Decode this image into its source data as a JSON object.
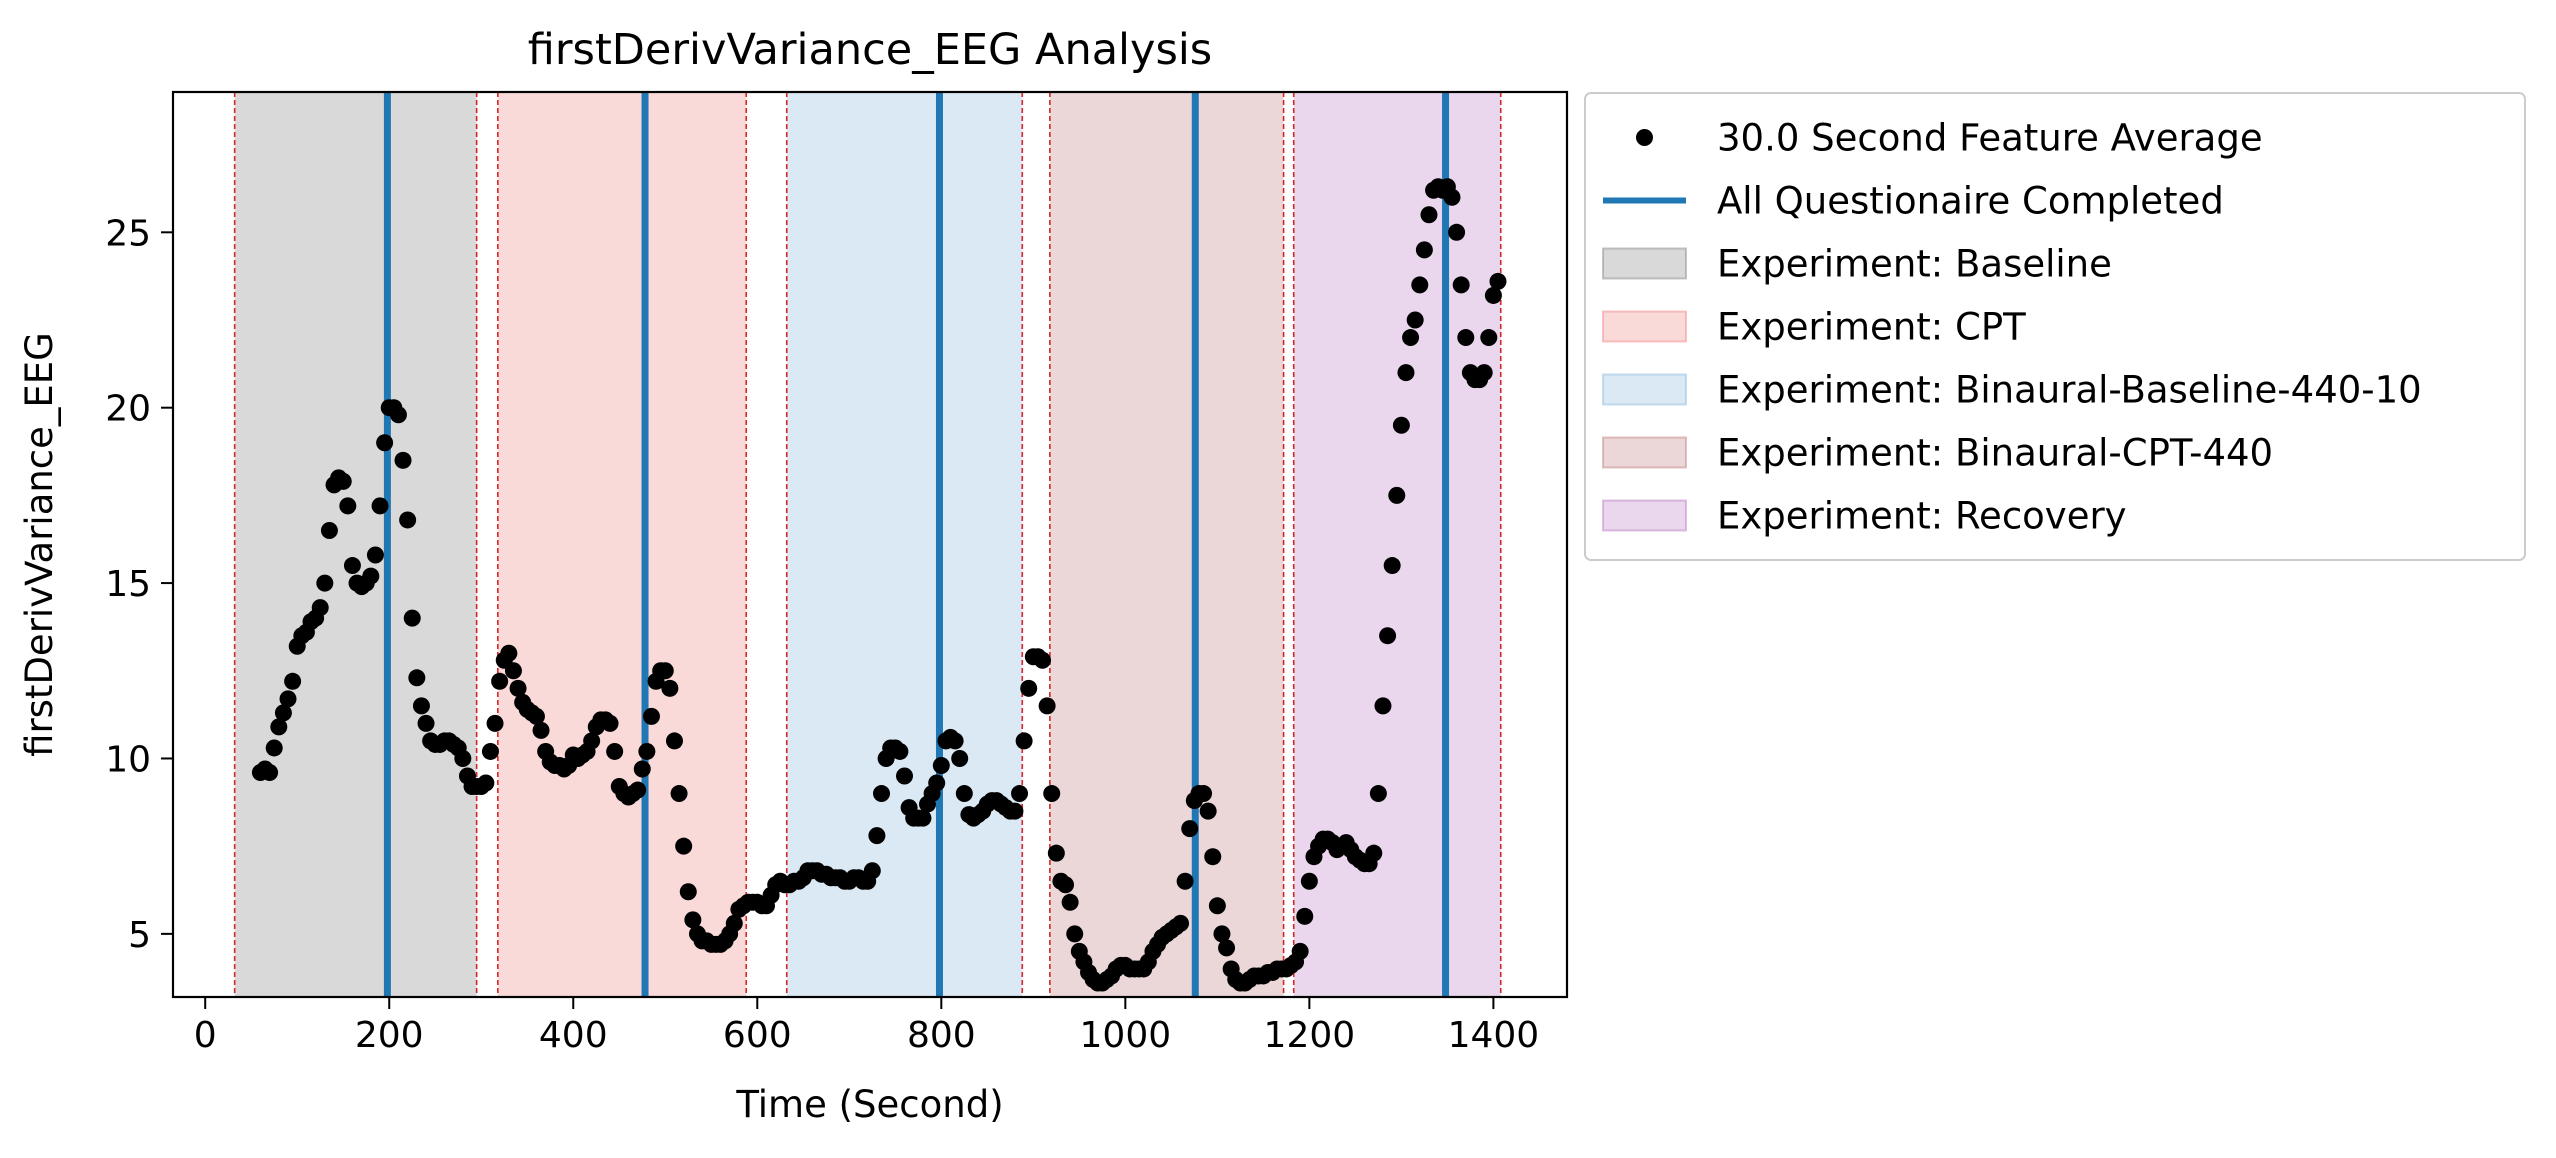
{
  "chart_data": {
    "type": "scatter",
    "title": "firstDerivVariance_EEG Analysis",
    "xlabel": "Time (Second)",
    "ylabel": "firstDerivVariance_EEG",
    "xlim": [
      -35,
      1480
    ],
    "ylim": [
      3.2,
      29
    ],
    "xticks": [
      0,
      200,
      400,
      600,
      800,
      1000,
      1200,
      1400
    ],
    "yticks": [
      5,
      10,
      15,
      20,
      25
    ],
    "grid": false,
    "legend_position": "outside-right-top",
    "colors": {
      "points": "#000000",
      "questionnaire_line": "#1f77b4",
      "boundary_line": "#d62728",
      "Baseline": "#808080",
      "CPT": "#f08080",
      "Binaural-Baseline-440-10": "#87b5dc",
      "Binaural-CPT-440": "#bc7a7a",
      "Recovery": "#b978c2"
    },
    "experiment_phases": [
      {
        "name": "Baseline",
        "start": 32,
        "end": 295
      },
      {
        "name": "CPT",
        "start": 318,
        "end": 588
      },
      {
        "name": "Binaural-Baseline-440-10",
        "start": 632,
        "end": 888
      },
      {
        "name": "Binaural-CPT-440",
        "start": 918,
        "end": 1172
      },
      {
        "name": "Recovery",
        "start": 1183,
        "end": 1408
      }
    ],
    "phase_boundaries": [
      32,
      295,
      318,
      588,
      632,
      888,
      918,
      1172,
      1183,
      1408
    ],
    "questionnaire_completed": [
      198,
      478,
      798,
      1076,
      1348
    ],
    "series": [
      {
        "name": "30.0 Second Feature Average",
        "points": [
          [
            60,
            9.6
          ],
          [
            65,
            9.7
          ],
          [
            70,
            9.6
          ],
          [
            75,
            10.3
          ],
          [
            80,
            10.9
          ],
          [
            85,
            11.3
          ],
          [
            90,
            11.7
          ],
          [
            95,
            12.2
          ],
          [
            100,
            13.2
          ],
          [
            105,
            13.5
          ],
          [
            110,
            13.6
          ],
          [
            115,
            13.9
          ],
          [
            120,
            14.0
          ],
          [
            125,
            14.3
          ],
          [
            130,
            15.0
          ],
          [
            135,
            16.5
          ],
          [
            140,
            17.8
          ],
          [
            145,
            18.0
          ],
          [
            150,
            17.9
          ],
          [
            155,
            17.2
          ],
          [
            160,
            15.5
          ],
          [
            165,
            15.0
          ],
          [
            170,
            14.9
          ],
          [
            175,
            15.0
          ],
          [
            180,
            15.2
          ],
          [
            185,
            15.8
          ],
          [
            190,
            17.2
          ],
          [
            195,
            19.0
          ],
          [
            200,
            20.0
          ],
          [
            205,
            20.0
          ],
          [
            210,
            19.8
          ],
          [
            215,
            18.5
          ],
          [
            220,
            16.8
          ],
          [
            225,
            14.0
          ],
          [
            230,
            12.3
          ],
          [
            235,
            11.5
          ],
          [
            240,
            11.0
          ],
          [
            245,
            10.5
          ],
          [
            250,
            10.4
          ],
          [
            255,
            10.4
          ],
          [
            260,
            10.5
          ],
          [
            265,
            10.5
          ],
          [
            270,
            10.4
          ],
          [
            275,
            10.3
          ],
          [
            280,
            10.0
          ],
          [
            285,
            9.5
          ],
          [
            290,
            9.2
          ],
          [
            295,
            9.2
          ],
          [
            300,
            9.2
          ],
          [
            305,
            9.3
          ],
          [
            310,
            10.2
          ],
          [
            315,
            11.0
          ],
          [
            320,
            12.2
          ],
          [
            325,
            12.8
          ],
          [
            330,
            13.0
          ],
          [
            335,
            12.5
          ],
          [
            340,
            12.0
          ],
          [
            345,
            11.6
          ],
          [
            350,
            11.4
          ],
          [
            355,
            11.3
          ],
          [
            360,
            11.2
          ],
          [
            365,
            10.8
          ],
          [
            370,
            10.2
          ],
          [
            375,
            9.9
          ],
          [
            380,
            9.8
          ],
          [
            385,
            9.8
          ],
          [
            390,
            9.7
          ],
          [
            395,
            9.8
          ],
          [
            400,
            10.1
          ],
          [
            405,
            10.0
          ],
          [
            410,
            10.1
          ],
          [
            415,
            10.2
          ],
          [
            420,
            10.5
          ],
          [
            425,
            10.9
          ],
          [
            430,
            11.1
          ],
          [
            435,
            11.1
          ],
          [
            440,
            11.0
          ],
          [
            445,
            10.2
          ],
          [
            450,
            9.2
          ],
          [
            455,
            9.0
          ],
          [
            460,
            8.9
          ],
          [
            465,
            9.0
          ],
          [
            470,
            9.1
          ],
          [
            475,
            9.7
          ],
          [
            480,
            10.2
          ],
          [
            485,
            11.2
          ],
          [
            490,
            12.2
          ],
          [
            495,
            12.5
          ],
          [
            500,
            12.5
          ],
          [
            505,
            12.0
          ],
          [
            510,
            10.5
          ],
          [
            515,
            9.0
          ],
          [
            520,
            7.5
          ],
          [
            525,
            6.2
          ],
          [
            530,
            5.4
          ],
          [
            535,
            5.0
          ],
          [
            540,
            4.8
          ],
          [
            545,
            4.8
          ],
          [
            550,
            4.7
          ],
          [
            555,
            4.7
          ],
          [
            560,
            4.7
          ],
          [
            565,
            4.8
          ],
          [
            570,
            5.0
          ],
          [
            575,
            5.3
          ],
          [
            580,
            5.7
          ],
          [
            585,
            5.8
          ],
          [
            590,
            5.9
          ],
          [
            595,
            5.9
          ],
          [
            600,
            5.9
          ],
          [
            605,
            5.8
          ],
          [
            610,
            5.8
          ],
          [
            615,
            6.1
          ],
          [
            620,
            6.4
          ],
          [
            625,
            6.5
          ],
          [
            630,
            6.4
          ],
          [
            635,
            6.4
          ],
          [
            640,
            6.5
          ],
          [
            645,
            6.5
          ],
          [
            650,
            6.6
          ],
          [
            655,
            6.8
          ],
          [
            660,
            6.8
          ],
          [
            665,
            6.8
          ],
          [
            670,
            6.7
          ],
          [
            675,
            6.7
          ],
          [
            680,
            6.6
          ],
          [
            685,
            6.6
          ],
          [
            690,
            6.6
          ],
          [
            695,
            6.5
          ],
          [
            700,
            6.5
          ],
          [
            705,
            6.6
          ],
          [
            710,
            6.6
          ],
          [
            715,
            6.5
          ],
          [
            720,
            6.5
          ],
          [
            725,
            6.8
          ],
          [
            730,
            7.8
          ],
          [
            735,
            9.0
          ],
          [
            740,
            10.0
          ],
          [
            745,
            10.3
          ],
          [
            750,
            10.3
          ],
          [
            755,
            10.2
          ],
          [
            760,
            9.5
          ],
          [
            765,
            8.6
          ],
          [
            770,
            8.3
          ],
          [
            775,
            8.3
          ],
          [
            780,
            8.3
          ],
          [
            785,
            8.7
          ],
          [
            790,
            9.0
          ],
          [
            795,
            9.3
          ],
          [
            800,
            9.8
          ],
          [
            805,
            10.5
          ],
          [
            810,
            10.6
          ],
          [
            815,
            10.5
          ],
          [
            820,
            10.0
          ],
          [
            825,
            9.0
          ],
          [
            830,
            8.4
          ],
          [
            835,
            8.3
          ],
          [
            840,
            8.4
          ],
          [
            845,
            8.5
          ],
          [
            850,
            8.7
          ],
          [
            855,
            8.8
          ],
          [
            860,
            8.8
          ],
          [
            865,
            8.7
          ],
          [
            870,
            8.6
          ],
          [
            875,
            8.5
          ],
          [
            880,
            8.5
          ],
          [
            885,
            9.0
          ],
          [
            890,
            10.5
          ],
          [
            895,
            12.0
          ],
          [
            900,
            12.9
          ],
          [
            905,
            12.9
          ],
          [
            910,
            12.8
          ],
          [
            915,
            11.5
          ],
          [
            920,
            9.0
          ],
          [
            925,
            7.3
          ],
          [
            930,
            6.5
          ],
          [
            935,
            6.4
          ],
          [
            940,
            5.9
          ],
          [
            945,
            5.0
          ],
          [
            950,
            4.5
          ],
          [
            955,
            4.2
          ],
          [
            960,
            3.9
          ],
          [
            965,
            3.7
          ],
          [
            970,
            3.6
          ],
          [
            975,
            3.6
          ],
          [
            980,
            3.7
          ],
          [
            985,
            3.8
          ],
          [
            990,
            4.0
          ],
          [
            995,
            4.1
          ],
          [
            1000,
            4.1
          ],
          [
            1005,
            4.0
          ],
          [
            1010,
            4.0
          ],
          [
            1015,
            4.0
          ],
          [
            1020,
            4.0
          ],
          [
            1025,
            4.2
          ],
          [
            1030,
            4.5
          ],
          [
            1035,
            4.7
          ],
          [
            1040,
            4.9
          ],
          [
            1045,
            5.0
          ],
          [
            1050,
            5.1
          ],
          [
            1055,
            5.2
          ],
          [
            1060,
            5.3
          ],
          [
            1065,
            6.5
          ],
          [
            1070,
            8.0
          ],
          [
            1075,
            8.8
          ],
          [
            1080,
            9.0
          ],
          [
            1085,
            9.0
          ],
          [
            1090,
            8.5
          ],
          [
            1095,
            7.2
          ],
          [
            1100,
            5.8
          ],
          [
            1105,
            5.0
          ],
          [
            1110,
            4.6
          ],
          [
            1115,
            4.0
          ],
          [
            1120,
            3.7
          ],
          [
            1125,
            3.6
          ],
          [
            1130,
            3.6
          ],
          [
            1135,
            3.7
          ],
          [
            1140,
            3.8
          ],
          [
            1145,
            3.8
          ],
          [
            1150,
            3.8
          ],
          [
            1155,
            3.9
          ],
          [
            1160,
            3.9
          ],
          [
            1165,
            4.0
          ],
          [
            1170,
            4.0
          ],
          [
            1175,
            4.0
          ],
          [
            1180,
            4.1
          ],
          [
            1185,
            4.2
          ],
          [
            1190,
            4.5
          ],
          [
            1195,
            5.5
          ],
          [
            1200,
            6.5
          ],
          [
            1205,
            7.2
          ],
          [
            1210,
            7.5
          ],
          [
            1215,
            7.7
          ],
          [
            1220,
            7.7
          ],
          [
            1225,
            7.6
          ],
          [
            1230,
            7.4
          ],
          [
            1235,
            7.5
          ],
          [
            1240,
            7.6
          ],
          [
            1245,
            7.4
          ],
          [
            1250,
            7.2
          ],
          [
            1255,
            7.1
          ],
          [
            1260,
            7.0
          ],
          [
            1265,
            7.0
          ],
          [
            1270,
            7.3
          ],
          [
            1275,
            9.0
          ],
          [
            1280,
            11.5
          ],
          [
            1285,
            13.5
          ],
          [
            1290,
            15.5
          ],
          [
            1295,
            17.5
          ],
          [
            1300,
            19.5
          ],
          [
            1305,
            21.0
          ],
          [
            1310,
            22.0
          ],
          [
            1315,
            22.5
          ],
          [
            1320,
            23.5
          ],
          [
            1325,
            24.5
          ],
          [
            1330,
            25.5
          ],
          [
            1335,
            26.2
          ],
          [
            1340,
            26.3
          ],
          [
            1345,
            26.2
          ],
          [
            1350,
            26.3
          ],
          [
            1355,
            26.0
          ],
          [
            1360,
            25.0
          ],
          [
            1365,
            23.5
          ],
          [
            1370,
            22.0
          ],
          [
            1375,
            21.0
          ],
          [
            1380,
            20.8
          ],
          [
            1385,
            20.8
          ],
          [
            1390,
            21.0
          ],
          [
            1395,
            22.0
          ],
          [
            1400,
            23.2
          ],
          [
            1405,
            23.6
          ]
        ]
      },
      {
        "name": "All Questionaire Completed"
      }
    ],
    "legend_entries": [
      {
        "label": "30.0 Second Feature Average",
        "kind": "marker",
        "color": "#000000"
      },
      {
        "label": "All Questionaire Completed",
        "kind": "line",
        "color": "#1f77b4"
      },
      {
        "label": "Experiment: Baseline",
        "kind": "patch",
        "color": "#808080"
      },
      {
        "label": "Experiment: CPT",
        "kind": "patch",
        "color": "#f08080"
      },
      {
        "label": "Experiment: Binaural-Baseline-440-10",
        "kind": "patch",
        "color": "#87b5dc"
      },
      {
        "label": "Experiment: Binaural-CPT-440",
        "kind": "patch",
        "color": "#bc7a7a"
      },
      {
        "label": "Experiment: Recovery",
        "kind": "patch",
        "color": "#b978c2"
      }
    ]
  }
}
